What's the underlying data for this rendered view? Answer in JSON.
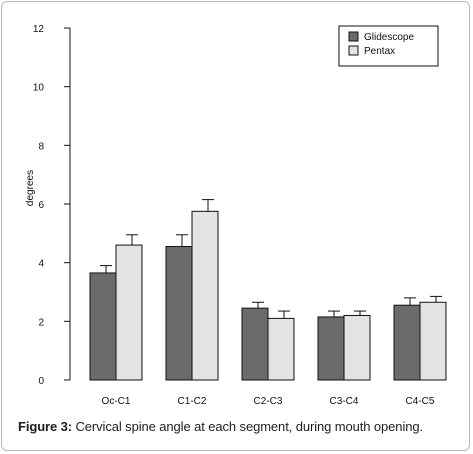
{
  "chart_data": {
    "type": "bar",
    "categories": [
      "Oc-C1",
      "C1-C2",
      "C2-C3",
      "C3-C4",
      "C4-C5"
    ],
    "series": [
      {
        "name": "Glidescope",
        "color": "#6b6b6b",
        "values": [
          3.65,
          4.55,
          2.45,
          2.15,
          2.55
        ],
        "errors": [
          0.25,
          0.4,
          0.2,
          0.2,
          0.25
        ]
      },
      {
        "name": "Pentax",
        "color": "#e3e3e3",
        "values": [
          4.6,
          5.75,
          2.1,
          2.2,
          2.65
        ],
        "errors": [
          0.35,
          0.4,
          0.25,
          0.15,
          0.2
        ]
      }
    ],
    "xlabel": "",
    "ylabel": "degrees",
    "ylim": [
      0,
      12
    ],
    "yticks": [
      "0",
      "2",
      "4",
      "6",
      "8",
      "10",
      "12"
    ],
    "grid": false,
    "legend_position": "top-right"
  },
  "caption": {
    "lead": "Figure 3:",
    "text": " Cervical spine angle at each segment, during mouth opening."
  }
}
